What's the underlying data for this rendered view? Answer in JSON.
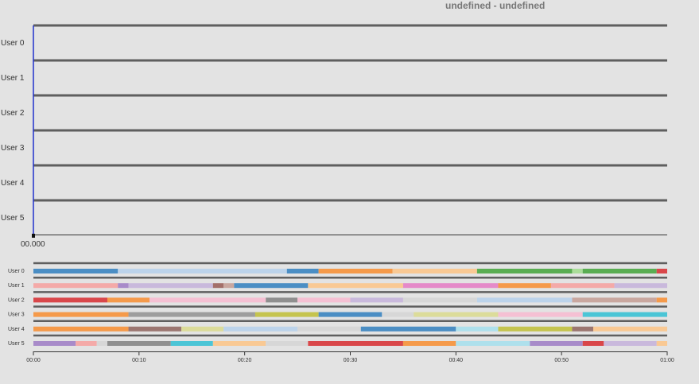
{
  "title": "undefined - undefined",
  "chart_data": {
    "type": "timeline",
    "main": {
      "lanes": [
        "User 0",
        "User 1",
        "User 2",
        "User 3",
        "User 4",
        "User 5"
      ],
      "start_tick": "00.000"
    },
    "overview": {
      "lanes": [
        "User 0",
        "User 1",
        "User 2",
        "User 3",
        "User 4",
        "User 5"
      ],
      "x_ticks": [
        "00:00",
        "00:10",
        "00:20",
        "00:30",
        "00:40",
        "00:50",
        "01:00"
      ],
      "x_range_minutes": [
        0,
        60
      ],
      "segments": [
        [
          [
            0,
            8,
            "#4b8ec4"
          ],
          [
            8,
            24,
            "#bcd3ea"
          ],
          [
            24,
            27,
            "#4b8ec4"
          ],
          [
            27,
            34,
            "#f59a4a"
          ],
          [
            34,
            42,
            "#f9c994"
          ],
          [
            42,
            51,
            "#5aad52"
          ],
          [
            51,
            52,
            "#aadd99"
          ],
          [
            52,
            59,
            "#5aad52"
          ],
          [
            59,
            60,
            "#d9474a"
          ]
        ],
        [
          [
            0,
            8,
            "#f4aaa8"
          ],
          [
            8,
            9,
            "#a88bc9"
          ],
          [
            9,
            17,
            "#c9b9dc"
          ],
          [
            17,
            18,
            "#a36f69"
          ],
          [
            18,
            19,
            "#c9a79f"
          ],
          [
            19,
            26,
            "#4b8ec4"
          ],
          [
            26,
            35,
            "#f9c994"
          ],
          [
            35,
            44,
            "#e58ac9"
          ],
          [
            44,
            49,
            "#f59a4a"
          ],
          [
            49,
            55,
            "#f4aaa8"
          ],
          [
            55,
            60,
            "#c9b9dc"
          ]
        ],
        [
          [
            0,
            7,
            "#d9474a"
          ],
          [
            7,
            11,
            "#f59a4a"
          ],
          [
            11,
            22,
            "#f5c0d3"
          ],
          [
            22,
            25,
            "#8f8f8f"
          ],
          [
            25,
            30,
            "#f5c0d3"
          ],
          [
            30,
            35,
            "#c9b9dc"
          ],
          [
            35,
            42,
            "#d7d7d7"
          ],
          [
            42,
            51,
            "#bcd3ea"
          ],
          [
            51,
            59,
            "#c9a79f"
          ],
          [
            59,
            60,
            "#f59a4a"
          ]
        ],
        [
          [
            0,
            9,
            "#f59a4a"
          ],
          [
            9,
            21,
            "#9e9e9e"
          ],
          [
            21,
            27,
            "#c5c44e"
          ],
          [
            27,
            33,
            "#4b8ec4"
          ],
          [
            33,
            36,
            "#d7d7d7"
          ],
          [
            36,
            44,
            "#dcdc9a"
          ],
          [
            44,
            52,
            "#f5c0d3"
          ],
          [
            52,
            60,
            "#4bc5d6"
          ]
        ],
        [
          [
            0,
            9,
            "#f59a4a"
          ],
          [
            9,
            14,
            "#9b7671"
          ],
          [
            14,
            18,
            "#dcdc9a"
          ],
          [
            18,
            25,
            "#bcd3ea"
          ],
          [
            25,
            31,
            "#d7d7d7"
          ],
          [
            31,
            40,
            "#4b8ec4"
          ],
          [
            40,
            44,
            "#aee0ec"
          ],
          [
            44,
            51,
            "#c5c44e"
          ],
          [
            51,
            53,
            "#9b7671"
          ],
          [
            53,
            60,
            "#f9c994"
          ]
        ],
        [
          [
            0,
            4,
            "#a88bc9"
          ],
          [
            4,
            6,
            "#f4aaa8"
          ],
          [
            6,
            7,
            "#d7d7d7"
          ],
          [
            7,
            13,
            "#8f8f8f"
          ],
          [
            13,
            17,
            "#4bc5d6"
          ],
          [
            17,
            22,
            "#f9c994"
          ],
          [
            22,
            26,
            "#d7d7d7"
          ],
          [
            26,
            35,
            "#d9474a"
          ],
          [
            35,
            40,
            "#f59a4a"
          ],
          [
            40,
            47,
            "#aee0ec"
          ],
          [
            47,
            52,
            "#a88bc9"
          ],
          [
            52,
            54,
            "#d9474a"
          ],
          [
            54,
            59,
            "#c9b9dc"
          ],
          [
            59,
            60,
            "#f9c994"
          ]
        ]
      ]
    }
  }
}
